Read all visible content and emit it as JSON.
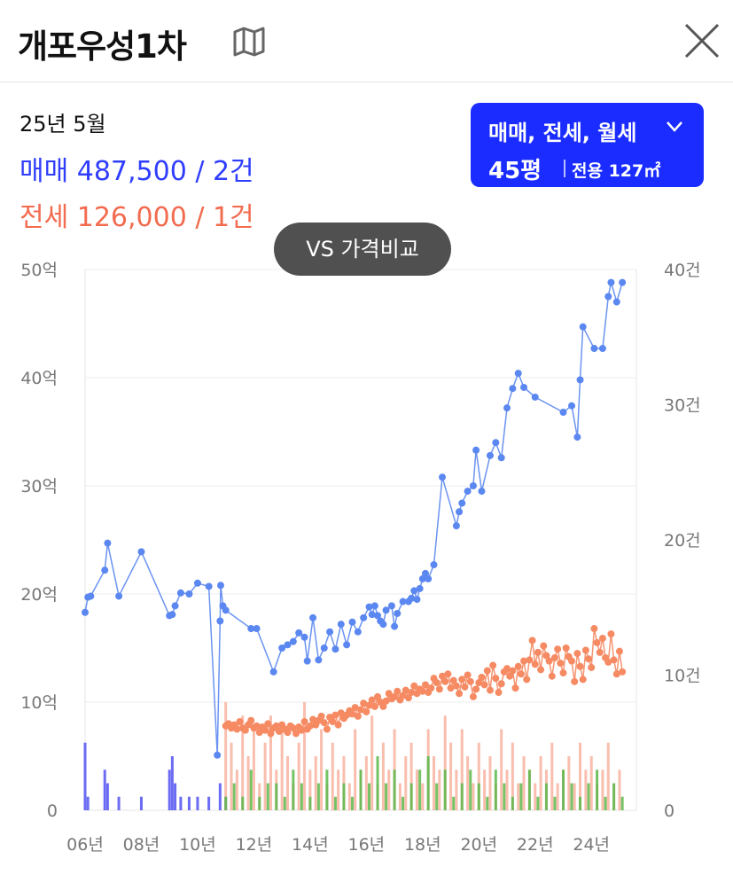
{
  "header": {
    "title": "개포우성1차",
    "map_icon": "map-icon",
    "close_icon": "close-icon"
  },
  "summary": {
    "date": "25년 5월",
    "sale_line": "매매 487,500 / 2건",
    "jeonse_line": "전세 126,000 / 1건"
  },
  "filter": {
    "types": "매매, 전세, 월세",
    "size": "45평",
    "area": "전용 127㎡"
  },
  "compare_button": "VS 가격비교",
  "colors": {
    "sale": "#5b87f0",
    "jeonse": "#f58a63",
    "sale_bar": "#5c5cf2",
    "jeonse_bar": "#f7a893",
    "wolse_bar": "#5db84a",
    "accent": "#1a2cff"
  },
  "chart_data": {
    "type": "line",
    "x_ticks": [
      "06년",
      "08년",
      "10년",
      "12년",
      "14년",
      "16년",
      "18년",
      "20년",
      "22년",
      "24년"
    ],
    "y_left_ticks": [
      "0",
      "10억",
      "20억",
      "30억",
      "40억",
      "50억"
    ],
    "y_right_ticks": [
      "0",
      "10건",
      "20건",
      "30건",
      "40건"
    ],
    "ylim_left": [
      0,
      50
    ],
    "ylim_right": [
      0,
      40
    ],
    "xlim": [
      2006,
      2025.6
    ],
    "grid": true,
    "series": [
      {
        "kind": "price",
        "x": [
          2006.0,
          2006.1,
          2006.2,
          2006.7,
          2006.8,
          2007.2,
          2008.0,
          2009.0,
          2009.1,
          2009.2,
          2009.4,
          2009.7,
          2010.0,
          2010.4,
          2010.7,
          2010.8,
          2010.82,
          2010.9,
          2011.0,
          2011.9,
          2012.1,
          2012.7,
          2013.0,
          2013.2,
          2013.4,
          2013.6,
          2013.8,
          2013.9,
          2014.1,
          2014.3,
          2014.5,
          2014.7,
          2014.9,
          2015.1,
          2015.3,
          2015.5,
          2015.7,
          2015.9,
          2016.1,
          2016.2,
          2016.3,
          2016.4,
          2016.5,
          2016.6,
          2016.7,
          2016.9,
          2017.0,
          2017.1,
          2017.3,
          2017.5,
          2017.6,
          2017.7,
          2017.8,
          2017.9,
          2018.0,
          2018.1,
          2018.2,
          2018.4,
          2018.7,
          2019.2,
          2019.3,
          2019.4,
          2019.6,
          2019.8,
          2019.9,
          2020.1,
          2020.4,
          2020.6,
          2020.8,
          2021.0,
          2021.2,
          2021.4,
          2021.6,
          2022.0,
          2023.0,
          2023.3,
          2023.5,
          2023.6,
          2023.7,
          2024.1,
          2024.4,
          2024.6,
          2024.7,
          2024.9,
          2025.1
        ],
        "y": [
          18.3,
          19.7,
          19.8,
          22.2,
          24.7,
          19.8,
          23.9,
          18.0,
          18.1,
          18.9,
          20.1,
          20.0,
          21.0,
          20.7,
          5.1,
          17.5,
          20.8,
          18.9,
          18.5,
          16.8,
          16.8,
          12.8,
          15.0,
          15.3,
          15.6,
          16.4,
          16.0,
          13.8,
          17.8,
          13.9,
          15.0,
          16.5,
          14.9,
          17.2,
          15.3,
          17.4,
          16.5,
          17.8,
          18.8,
          18.1,
          18.9,
          18.0,
          17.5,
          17.2,
          18.5,
          18.9,
          17.0,
          18.2,
          19.3,
          19.3,
          19.6,
          20.3,
          19.5,
          20.5,
          21.4,
          21.9,
          21.4,
          22.7,
          30.8,
          26.3,
          27.6,
          28.4,
          29.5,
          30.0,
          33.3,
          29.5,
          32.8,
          34.0,
          32.6,
          37.2,
          39.0,
          40.4,
          39.1,
          38.2,
          36.8,
          37.4,
          34.5,
          39.8,
          44.7,
          42.7,
          42.7,
          47.5,
          48.8,
          47.0,
          48.8
        ]
      },
      {
        "kind": "price",
        "x": [
          2011.0,
          2011.1,
          2011.2,
          2011.3,
          2011.4,
          2011.5,
          2011.6,
          2011.7,
          2011.8,
          2011.9,
          2012.0,
          2012.1,
          2012.2,
          2012.3,
          2012.4,
          2012.5,
          2012.6,
          2012.7,
          2012.8,
          2012.9,
          2013.0,
          2013.1,
          2013.2,
          2013.3,
          2013.4,
          2013.5,
          2013.6,
          2013.7,
          2013.8,
          2013.9,
          2014.0,
          2014.1,
          2014.2,
          2014.3,
          2014.4,
          2014.5,
          2014.6,
          2014.7,
          2014.8,
          2014.9,
          2015.0,
          2015.1,
          2015.2,
          2015.3,
          2015.4,
          2015.5,
          2015.6,
          2015.7,
          2015.8,
          2015.9,
          2016.0,
          2016.1,
          2016.2,
          2016.3,
          2016.4,
          2016.5,
          2016.6,
          2016.7,
          2016.8,
          2016.9,
          2017.0,
          2017.1,
          2017.2,
          2017.3,
          2017.4,
          2017.5,
          2017.6,
          2017.7,
          2017.8,
          2017.9,
          2018.0,
          2018.1,
          2018.2,
          2018.3,
          2018.4,
          2018.5,
          2018.6,
          2018.7,
          2018.8,
          2018.9,
          2019.0,
          2019.1,
          2019.2,
          2019.3,
          2019.4,
          2019.5,
          2019.6,
          2019.7,
          2019.8,
          2019.9,
          2020.0,
          2020.1,
          2020.2,
          2020.3,
          2020.4,
          2020.5,
          2020.6,
          2020.7,
          2020.8,
          2020.9,
          2021.0,
          2021.1,
          2021.2,
          2021.3,
          2021.4,
          2021.5,
          2021.6,
          2021.7,
          2021.8,
          2021.9,
          2022.0,
          2022.1,
          2022.2,
          2022.3,
          2022.4,
          2022.5,
          2022.6,
          2022.7,
          2022.8,
          2022.9,
          2023.0,
          2023.1,
          2023.2,
          2023.3,
          2023.4,
          2023.5,
          2023.6,
          2023.7,
          2023.8,
          2023.9,
          2024.0,
          2024.1,
          2024.2,
          2024.3,
          2024.4,
          2024.5,
          2024.6,
          2024.7,
          2024.8,
          2024.9,
          2025.0,
          2025.1
        ],
        "y": [
          7.8,
          8.0,
          7.6,
          7.9,
          7.5,
          8.2,
          7.6,
          7.4,
          7.9,
          8.3,
          7.6,
          7.8,
          7.2,
          7.7,
          7.4,
          8.0,
          7.1,
          7.6,
          7.8,
          7.3,
          7.9,
          7.5,
          7.2,
          7.8,
          7.6,
          7.1,
          7.7,
          7.4,
          8.2,
          7.5,
          7.8,
          8.4,
          7.9,
          8.3,
          8.7,
          8.1,
          7.5,
          8.6,
          8.2,
          8.8,
          7.9,
          9.0,
          8.5,
          8.8,
          9.2,
          8.9,
          9.5,
          8.7,
          9.3,
          9.9,
          9.1,
          9.7,
          10.2,
          9.6,
          10.5,
          10.0,
          9.6,
          10.1,
          10.8,
          10.3,
          10.5,
          11.0,
          10.2,
          10.6,
          11.1,
          10.4,
          10.9,
          11.5,
          10.8,
          11.2,
          11.0,
          11.6,
          10.9,
          11.3,
          12.2,
          11.8,
          11.2,
          12.4,
          11.9,
          12.6,
          11.3,
          12.0,
          11.5,
          10.8,
          12.1,
          11.4,
          12.5,
          11.9,
          10.5,
          11.2,
          11.8,
          12.3,
          11.6,
          12.9,
          11.1,
          13.4,
          12.2,
          10.9,
          11.7,
          12.8,
          13.1,
          12.4,
          12.9,
          11.3,
          13.3,
          12.6,
          13.8,
          12.1,
          13.9,
          15.7,
          13.5,
          14.6,
          13.0,
          15.2,
          14.3,
          13.8,
          12.4,
          14.1,
          14.9,
          13.6,
          12.7,
          15.0,
          14.2,
          13.8,
          11.9,
          14.5,
          13.3,
          12.1,
          14.8,
          14.0,
          13.2,
          16.8,
          15.5,
          14.6,
          15.9,
          14.1,
          13.7,
          16.3,
          13.9,
          12.6,
          14.7,
          12.8
        ]
      },
      {
        "kind": "volume",
        "x": [
          2006.0,
          2006.1,
          2006.7,
          2006.8,
          2007.2,
          2008.0,
          2009.0,
          2009.1,
          2009.2,
          2009.4,
          2009.7,
          2010.0,
          2010.4,
          2010.8,
          2011.0
        ],
        "values": [
          5,
          1,
          3,
          2,
          1,
          1,
          3,
          4,
          2,
          1,
          1,
          1,
          1,
          2,
          1
        ]
      },
      {
        "kind": "volume",
        "x": [
          2011.0,
          2011.2,
          2011.4,
          2011.6,
          2011.8,
          2012.0,
          2012.2,
          2012.4,
          2012.6,
          2012.8,
          2013.0,
          2013.2,
          2013.4,
          2013.6,
          2013.8,
          2014.0,
          2014.2,
          2014.4,
          2014.6,
          2014.8,
          2015.0,
          2015.2,
          2015.4,
          2015.6,
          2015.8,
          2016.0,
          2016.2,
          2016.4,
          2016.6,
          2016.8,
          2017.0,
          2017.2,
          2017.4,
          2017.6,
          2017.8,
          2018.0,
          2018.2,
          2018.4,
          2018.6,
          2018.8,
          2019.0,
          2019.2,
          2019.4,
          2019.6,
          2019.8,
          2020.0,
          2020.2,
          2020.4,
          2020.6,
          2020.8,
          2021.0,
          2021.2,
          2021.4,
          2021.6,
          2021.8,
          2022.0,
          2022.2,
          2022.4,
          2022.6,
          2022.8,
          2023.0,
          2023.2,
          2023.4,
          2023.6,
          2023.8,
          2024.0,
          2024.2,
          2024.4,
          2024.6,
          2024.8,
          2025.0
        ],
        "values": [
          8,
          5,
          3,
          7,
          4,
          6,
          2,
          5,
          7,
          3,
          6,
          4,
          2,
          5,
          8,
          3,
          4,
          6,
          2,
          5,
          3,
          4,
          2,
          6,
          3,
          4,
          7,
          2,
          5,
          3,
          6,
          2,
          4,
          5,
          3,
          2,
          6,
          4,
          3,
          7,
          5,
          3,
          6,
          4,
          2,
          5,
          3,
          4,
          2,
          6,
          3,
          5,
          2,
          4,
          3,
          2,
          4,
          3,
          5,
          2,
          3,
          4,
          2,
          5,
          3,
          4,
          2,
          3,
          5,
          2,
          3
        ]
      },
      {
        "kind": "volume",
        "x": [
          2011.0,
          2011.3,
          2011.6,
          2011.9,
          2012.2,
          2012.5,
          2012.8,
          2013.1,
          2013.4,
          2013.7,
          2014.0,
          2014.3,
          2014.6,
          2014.9,
          2015.2,
          2015.5,
          2015.8,
          2016.1,
          2016.4,
          2016.7,
          2017.0,
          2017.3,
          2017.6,
          2017.9,
          2018.2,
          2018.5,
          2018.8,
          2019.1,
          2019.4,
          2019.7,
          2020.0,
          2020.3,
          2020.6,
          2020.9,
          2021.2,
          2021.5,
          2021.8,
          2022.1,
          2022.4,
          2022.7,
          2023.0,
          2023.3,
          2023.6,
          2023.9,
          2024.2,
          2024.5,
          2024.8,
          2025.1
        ],
        "values": [
          1,
          2,
          1,
          3,
          1,
          2,
          2,
          1,
          3,
          2,
          1,
          2,
          3,
          1,
          2,
          1,
          3,
          2,
          4,
          2,
          3,
          1,
          2,
          3,
          4,
          2,
          3,
          1,
          2,
          3,
          2,
          1,
          3,
          2,
          1,
          2,
          3,
          1,
          2,
          1,
          3,
          2,
          1,
          2,
          3,
          1,
          2,
          1
        ]
      }
    ]
  }
}
